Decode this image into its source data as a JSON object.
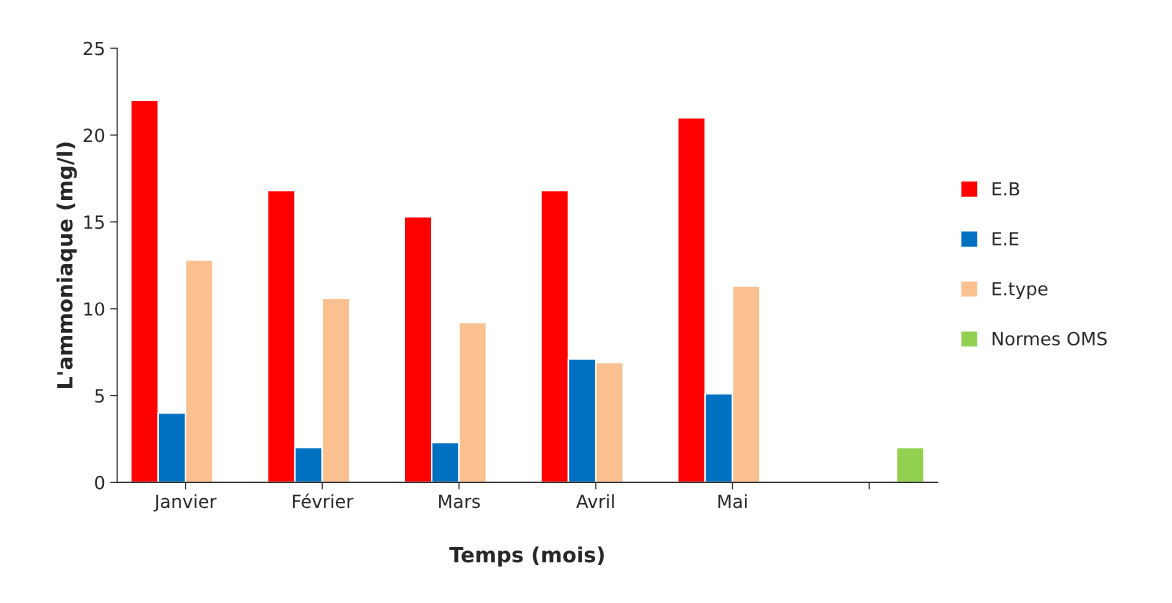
{
  "chart_data": {
    "type": "bar",
    "xlabel": "Temps (mois)",
    "ylabel": "L'ammoniaque (mg/l)",
    "categories": [
      "Janvier",
      "Février",
      "Mars",
      "Avril",
      "Mai",
      null
    ],
    "series": [
      {
        "name": "E.B",
        "color": "#ff0000",
        "values": [
          22,
          16.8,
          15.3,
          16.8,
          21,
          null
        ]
      },
      {
        "name": "E.E",
        "color": "#0070c0",
        "values": [
          4,
          2,
          2.3,
          7.1,
          5.1,
          null
        ]
      },
      {
        "name": "E.type",
        "color": "#fac090",
        "values": [
          12.8,
          10.6,
          9.2,
          6.9,
          11.3,
          null
        ]
      },
      {
        "name": "Normes OMS",
        "color": "#92d050",
        "values": [
          null,
          null,
          null,
          null,
          null,
          2
        ]
      }
    ],
    "ylim": [
      0,
      25
    ],
    "yticks": [
      0,
      5,
      10,
      15,
      20,
      25
    ],
    "grid": false,
    "legend": "right"
  }
}
